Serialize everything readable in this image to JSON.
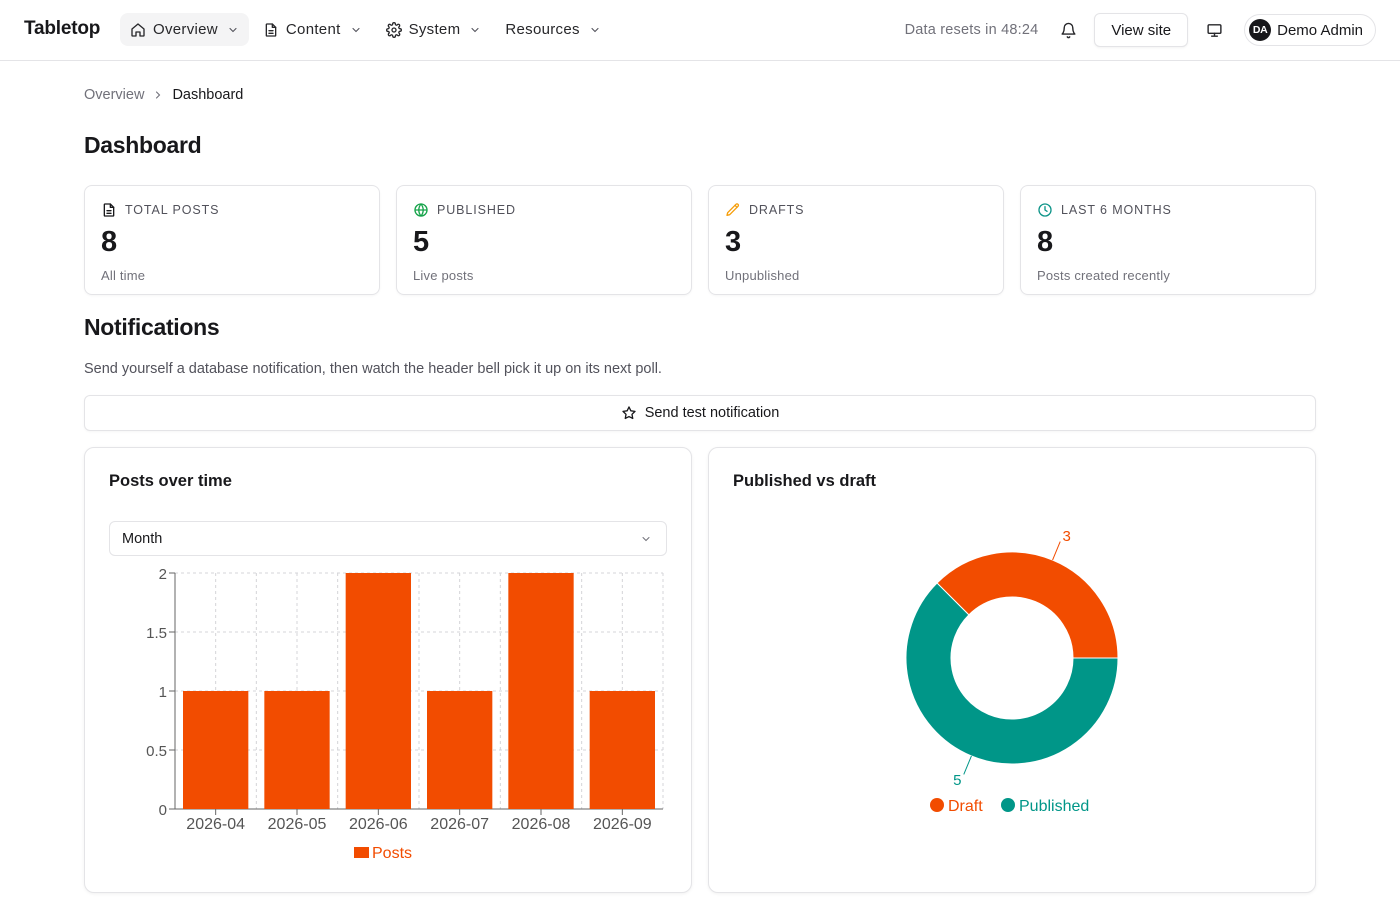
{
  "app": {
    "brand": "Tabletop"
  },
  "nav": [
    {
      "label": "Overview",
      "icon": "home-icon",
      "active": true
    },
    {
      "label": "Content",
      "icon": "document-icon",
      "active": false
    },
    {
      "label": "System",
      "icon": "gear-icon",
      "active": false
    },
    {
      "label": "Resources",
      "icon": "",
      "active": false
    }
  ],
  "header": {
    "reset_text": "Data resets in 48:24",
    "view_site": "View site",
    "user_initials": "DA",
    "user_name": "Demo Admin"
  },
  "breadcrumb": {
    "parent": "Overview",
    "current": "Dashboard"
  },
  "page_title": "Dashboard",
  "stats": [
    {
      "label": "TOTAL POSTS",
      "value": "8",
      "desc": "All time",
      "icon": "document-icon",
      "color": "#18181b"
    },
    {
      "label": "PUBLISHED",
      "value": "5",
      "desc": "Live posts",
      "icon": "globe-icon",
      "color": "#16a34a"
    },
    {
      "label": "DRAFTS",
      "value": "3",
      "desc": "Unpublished",
      "icon": "pencil-icon",
      "color": "#f59e0b"
    },
    {
      "label": "LAST 6 MONTHS",
      "value": "8",
      "desc": "Posts created recently",
      "icon": "clock-icon",
      "color": "#0d9488"
    }
  ],
  "notifications": {
    "title": "Notifications",
    "desc": "Send yourself a database notification, then watch the header bell pick it up on its next poll.",
    "button": "Send test notification"
  },
  "posts_card": {
    "title": "Posts over time",
    "select_value": "Month"
  },
  "pie_card": {
    "title": "Published vs draft"
  },
  "colors": {
    "accent": "#f24c00",
    "teal": "#009688"
  },
  "chart_data": [
    {
      "type": "bar",
      "categories": [
        "2026-04",
        "2026-05",
        "2026-06",
        "2026-07",
        "2026-08",
        "2026-09"
      ],
      "series": [
        {
          "name": "Posts",
          "values": [
            1,
            1,
            2,
            1,
            2,
            1
          ]
        }
      ],
      "ylim": [
        0,
        2
      ],
      "yticks": [
        "0",
        "0.5",
        "1",
        "1.5",
        "2"
      ],
      "grid": true,
      "legend": "bottom",
      "title": "",
      "xlabel": "",
      "ylabel": ""
    },
    {
      "type": "pie",
      "donut": true,
      "slices": [
        {
          "name": "Draft",
          "value": 3,
          "color": "#f24c00"
        },
        {
          "name": "Published",
          "value": 5,
          "color": "#009688"
        }
      ],
      "legend": "bottom",
      "title": ""
    }
  ]
}
